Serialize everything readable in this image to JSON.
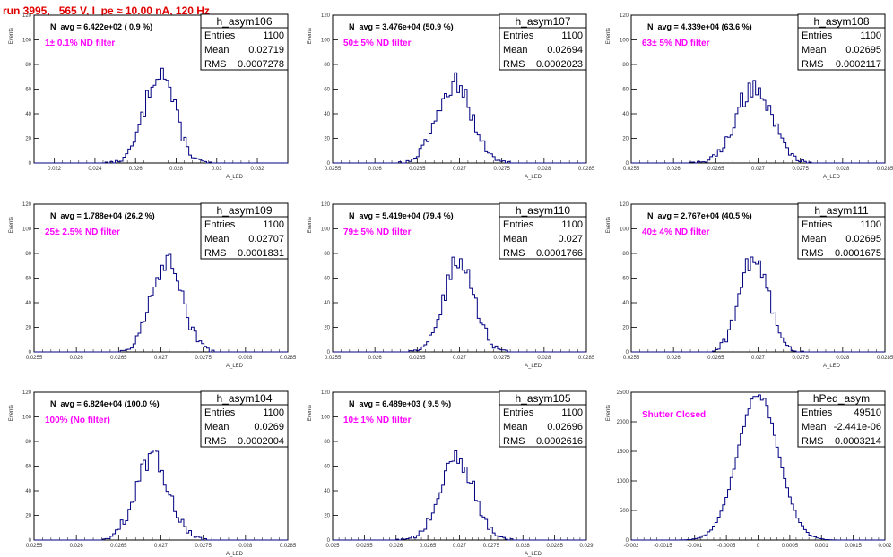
{
  "page_title": "run 3995,   565 V, I_pe ≈ 10.00 nA, 120 Hz",
  "colors": {
    "hist_line": "#000080",
    "title": "#e00000",
    "annotation": "#ff00ff"
  },
  "chart_data": [
    {
      "type": "bar",
      "title": "h_asym106",
      "navg": "N_avg = 6.422e+02 ( 0.9 %)",
      "annotation": "1± 0.1% ND filter",
      "stats": {
        "entries": "1100",
        "mean": "0.02719",
        "rms": "0.0007278"
      },
      "xlabel": "A_LED",
      "ylabel": "Events",
      "xlim": [
        0.021,
        0.0335
      ],
      "ylim": [
        0,
        120
      ],
      "yticks": [
        0,
        20,
        40,
        60,
        80,
        100,
        120
      ],
      "xticks": [
        0.022,
        0.024,
        0.026,
        0.028,
        0.03,
        0.032
      ],
      "xtick_labels": [
        "0.022",
        "0.024",
        "0.026",
        "0.028",
        "0.03",
        "0.032"
      ],
      "mu": 0.02719,
      "sigma": 0.0007278,
      "n": 1100,
      "binw": 0.000125
    },
    {
      "type": "bar",
      "title": "h_asym107",
      "navg": "N_avg = 3.476e+04 (50.9 %)",
      "annotation": "50± 5% ND filter",
      "stats": {
        "entries": "1100",
        "mean": "0.02694",
        "rms": "0.0002023"
      },
      "xlabel": "A_LED",
      "ylabel": "Events",
      "xlim": [
        0.0255,
        0.0285
      ],
      "ylim": [
        0,
        120
      ],
      "yticks": [
        0,
        20,
        40,
        60,
        80,
        100,
        120
      ],
      "xticks": [
        0.0255,
        0.026,
        0.0265,
        0.027,
        0.0275,
        0.028,
        0.0285
      ],
      "xtick_labels": [
        "0.0255",
        "0.026",
        "0.0265",
        "0.027",
        "0.0275",
        "0.028",
        "0.0285"
      ],
      "mu": 0.02694,
      "sigma": 0.0002023,
      "n": 1100,
      "binw": 3e-05
    },
    {
      "type": "bar",
      "title": "h_asym108",
      "navg": "N_avg = 4.339e+04 (63.6 %)",
      "annotation": "63± 5% ND filter",
      "stats": {
        "entries": "1100",
        "mean": "0.02695",
        "rms": "0.0002117"
      },
      "xlabel": "A_LED",
      "ylabel": "Events",
      "xlim": [
        0.0255,
        0.0285
      ],
      "ylim": [
        0,
        120
      ],
      "yticks": [
        0,
        20,
        40,
        60,
        80,
        100,
        120
      ],
      "xticks": [
        0.0255,
        0.026,
        0.0265,
        0.027,
        0.0275,
        0.028,
        0.0285
      ],
      "xtick_labels": [
        "0.0255",
        "0.026",
        "0.0265",
        "0.027",
        "0.0275",
        "0.028",
        "0.0285"
      ],
      "mu": 0.02695,
      "sigma": 0.0002117,
      "n": 1100,
      "binw": 3e-05
    },
    {
      "type": "bar",
      "title": "h_asym109",
      "navg": "N_avg = 1.788e+04 (26.2 %)",
      "annotation": "25± 2.5% ND filter",
      "stats": {
        "entries": "1100",
        "mean": "0.02707",
        "rms": "0.0001831"
      },
      "xlabel": "A_LED",
      "ylabel": "Events",
      "xlim": [
        0.0255,
        0.0285
      ],
      "ylim": [
        0,
        120
      ],
      "yticks": [
        0,
        20,
        40,
        60,
        80,
        100,
        120
      ],
      "xticks": [
        0.0255,
        0.026,
        0.0265,
        0.027,
        0.0275,
        0.028,
        0.0285
      ],
      "xtick_labels": [
        "0.0255",
        "0.026",
        "0.0265",
        "0.027",
        "0.0275",
        "0.028",
        "0.0285"
      ],
      "mu": 0.02707,
      "sigma": 0.0001831,
      "n": 1100,
      "binw": 3e-05
    },
    {
      "type": "bar",
      "title": "h_asym110",
      "navg": "N_avg = 5.419e+04 (79.4 %)",
      "annotation": "79± 5% ND filter",
      "stats": {
        "entries": "1100",
        "mean": "0.027",
        "rms": "0.0001766"
      },
      "xlabel": "A_LED",
      "ylabel": "Events",
      "xlim": [
        0.0255,
        0.0285
      ],
      "ylim": [
        0,
        120
      ],
      "yticks": [
        0,
        20,
        40,
        60,
        80,
        100,
        120
      ],
      "xticks": [
        0.0255,
        0.026,
        0.0265,
        0.027,
        0.0275,
        0.028,
        0.0285
      ],
      "xtick_labels": [
        "0.0255",
        "0.026",
        "0.0265",
        "0.027",
        "0.0275",
        "0.028",
        "0.0285"
      ],
      "mu": 0.027,
      "sigma": 0.0001766,
      "n": 1100,
      "binw": 3e-05
    },
    {
      "type": "bar",
      "title": "h_asym111",
      "navg": "N_avg = 2.767e+04 (40.5 %)",
      "annotation": "40± 4% ND filter",
      "stats": {
        "entries": "1100",
        "mean": "0.02695",
        "rms": "0.0001675"
      },
      "xlabel": "A_LED",
      "ylabel": "Events",
      "xlim": [
        0.0255,
        0.0285
      ],
      "ylim": [
        0,
        120
      ],
      "yticks": [
        0,
        20,
        40,
        60,
        80,
        100,
        120
      ],
      "xticks": [
        0.0255,
        0.026,
        0.0265,
        0.027,
        0.0275,
        0.028,
        0.0285
      ],
      "xtick_labels": [
        "0.0255",
        "0.026",
        "0.0265",
        "0.027",
        "0.0275",
        "0.028",
        "0.0285"
      ],
      "mu": 0.02695,
      "sigma": 0.0001675,
      "n": 1100,
      "binw": 3e-05
    },
    {
      "type": "bar",
      "title": "h_asym104",
      "navg": "N_avg = 6.824e+04 (100.0 %)",
      "annotation": "100% (No filter)",
      "stats": {
        "entries": "1100",
        "mean": "0.0269",
        "rms": "0.0002004"
      },
      "xlabel": "A_LED",
      "ylabel": "Events",
      "xlim": [
        0.0255,
        0.0285
      ],
      "ylim": [
        0,
        120
      ],
      "yticks": [
        0,
        20,
        40,
        60,
        80,
        100,
        120
      ],
      "xticks": [
        0.0255,
        0.026,
        0.0265,
        0.027,
        0.0275,
        0.028,
        0.0285
      ],
      "xtick_labels": [
        "0.0255",
        "0.026",
        "0.0265",
        "0.027",
        "0.0275",
        "0.028",
        "0.0285"
      ],
      "mu": 0.0269,
      "sigma": 0.0002004,
      "n": 1100,
      "binw": 3e-05
    },
    {
      "type": "bar",
      "title": "h_asym105",
      "navg": "N_avg = 6.489e+03 ( 9.5 %)",
      "annotation": "10± 1% ND filter",
      "stats": {
        "entries": "1100",
        "mean": "0.02696",
        "rms": "0.0002616"
      },
      "xlabel": "A_LED",
      "ylabel": "Events",
      "xlim": [
        0.025,
        0.029
      ],
      "ylim": [
        0,
        120
      ],
      "yticks": [
        0,
        20,
        40,
        60,
        80,
        100,
        120
      ],
      "xticks": [
        0.025,
        0.0255,
        0.026,
        0.0265,
        0.027,
        0.0275,
        0.028,
        0.0285,
        0.029
      ],
      "xtick_labels": [
        "0.025",
        "0.0255",
        "0.026",
        "0.0265",
        "0.027",
        "0.0275",
        "0.028",
        "0.0285",
        "0.029"
      ],
      "mu": 0.02696,
      "sigma": 0.0002616,
      "n": 1100,
      "binw": 4e-05
    },
    {
      "type": "bar",
      "title": "hPed_asym",
      "navg": "",
      "annotation": "Shutter Closed",
      "stats": {
        "entries": "49510",
        "mean": "-2.441e-06",
        "rms": "0.0003214"
      },
      "xlabel": "",
      "ylabel": "Events",
      "xlim": [
        -0.002,
        0.002
      ],
      "ylim": [
        0,
        2500
      ],
      "yticks": [
        0,
        500,
        1000,
        1500,
        2000,
        2500
      ],
      "xticks": [
        -0.002,
        -0.0015,
        -0.001,
        -0.0005,
        0,
        0.0005,
        0.001,
        0.0015,
        0.002
      ],
      "xtick_labels": [
        "-0.002",
        "-0.0015",
        "-0.001",
        "-0.0005",
        "0",
        "0.0005",
        "0.001",
        "0.0015",
        "0.002"
      ],
      "mu": 0.0,
      "sigma": 0.0003214,
      "n": 49510,
      "binw": 4e-05
    }
  ]
}
